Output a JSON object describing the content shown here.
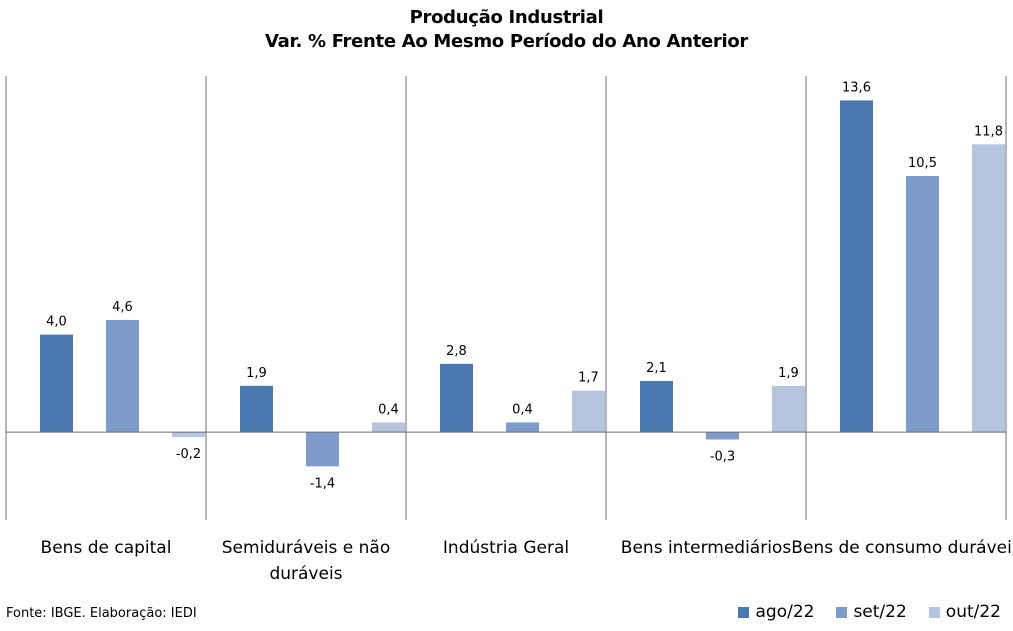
{
  "chart_data": {
    "type": "bar",
    "title": "Produção Industrial",
    "subtitle": "Var. % Frente Ao Mesmo Período do Ano Anterior",
    "categories": [
      "Bens de capital",
      "Semiduráveis e não duráveis",
      "Indústria Geral",
      "Bens intermediários",
      "Bens de consumo duráveis"
    ],
    "series": [
      {
        "name": "ago/22",
        "color": "#4a78b0",
        "values": [
          4.0,
          1.9,
          2.8,
          2.1,
          13.6
        ],
        "labels": [
          "4,0",
          "1,9",
          "2,8",
          "2,1",
          "13,6"
        ]
      },
      {
        "name": "set/22",
        "color": "#7e9ccb",
        "values": [
          4.6,
          -1.4,
          0.4,
          -0.3,
          10.5
        ],
        "labels": [
          "4,6",
          "-1,4",
          "0,4",
          "-0,3",
          "10,5"
        ]
      },
      {
        "name": "out/22",
        "color": "#b5c4df",
        "values": [
          -0.2,
          0.4,
          1.7,
          1.9,
          11.8
        ],
        "labels": [
          "-0,2",
          "0,4",
          "1,7",
          "1,9",
          "11,8"
        ]
      }
    ],
    "ylim": [
      -3.6,
      14.6
    ],
    "grid": false,
    "legend_position": "bottom-right"
  },
  "source": "Fonte: IBGE. Elaboração: IEDI"
}
